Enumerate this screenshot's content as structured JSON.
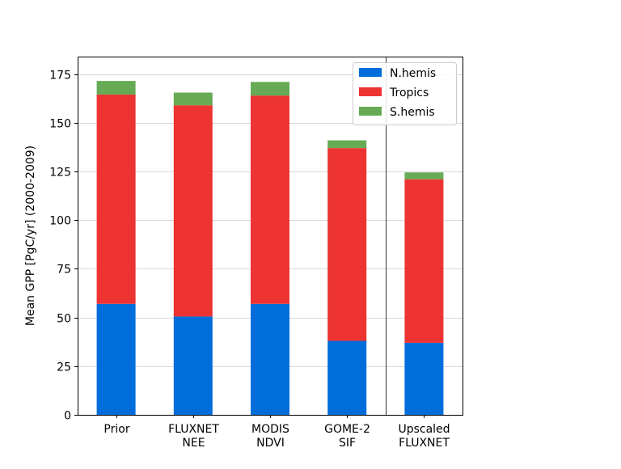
{
  "chart_data": {
    "type": "bar",
    "stacked": true,
    "title": "",
    "xlabel": "",
    "ylabel": "Mean GPP [PgC/yr] (2000-2009)",
    "ylim": [
      0,
      184
    ],
    "yticks": [
      0,
      25,
      50,
      75,
      100,
      125,
      150,
      175
    ],
    "grid": "horizontal",
    "legend_position": "top-right",
    "separator_after_category": 3,
    "categories": [
      [
        "Prior"
      ],
      [
        "FLUXNET",
        "NEE"
      ],
      [
        "MODIS",
        "NDVI"
      ],
      [
        "GOME-2",
        "SIF"
      ],
      [
        "Upscaled",
        "FLUXNET"
      ]
    ],
    "series": [
      {
        "name": "N.hemis",
        "color": "#006ddb",
        "values": [
          57,
          50.5,
          57,
          38,
          37
        ]
      },
      {
        "name": "Tropics",
        "color": "#ee3333",
        "values": [
          107.5,
          108.5,
          107,
          99,
          84
        ]
      },
      {
        "name": "S.hemis",
        "color": "#66aa55",
        "values": [
          7,
          6.5,
          7,
          4,
          3.5
        ]
      }
    ]
  }
}
